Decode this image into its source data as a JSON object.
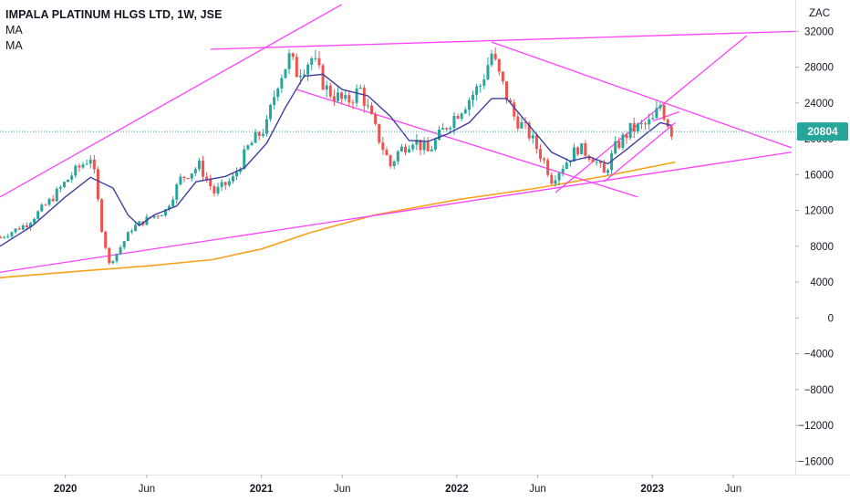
{
  "legend": {
    "symbol": "IMPALA PLATINUM HLGS LTD, 1W, JSE",
    "indicators": [
      "MA",
      "MA"
    ]
  },
  "colors": {
    "up": "#26a69a",
    "down": "#ef5350",
    "trendline": "#ff40ff",
    "ma_fast": "#3f3f9f",
    "ma_slow": "#f7a21b",
    "price_line": "#26a69a",
    "badge": "#26a69a"
  },
  "chart_data": {
    "type": "candlestick",
    "currency": "ZAC",
    "ylim": [
      -17500,
      35500
    ],
    "y_ticks": [
      32000,
      28000,
      24000,
      20000,
      16000,
      12000,
      8000,
      4000,
      0,
      -4000,
      -8000,
      -12000,
      -16000
    ],
    "y_tick_labels": [
      "32000",
      "28000",
      "24000",
      "20000",
      "16000",
      "12000",
      "8000",
      "4000",
      "0",
      "−4000",
      "−8000",
      "−12000",
      "−16000"
    ],
    "x_range": [
      "2019-09-01",
      "2023-09-25"
    ],
    "x_ticks": [
      {
        "date": "2020-01-01",
        "label": "2020",
        "bold": true
      },
      {
        "date": "2020-06-01",
        "label": "Jun",
        "bold": false
      },
      {
        "date": "2021-01-01",
        "label": "2021",
        "bold": true
      },
      {
        "date": "2021-06-01",
        "label": "Jun",
        "bold": false
      },
      {
        "date": "2022-01-01",
        "label": "2022",
        "bold": true
      },
      {
        "date": "2022-06-01",
        "label": "Jun",
        "bold": false
      },
      {
        "date": "2023-01-01",
        "label": "2023",
        "bold": true
      },
      {
        "date": "2023-06-01",
        "label": "Jun",
        "bold": false
      }
    ],
    "last_price": 20804,
    "last_price_label": "20804",
    "price_keypoints": [
      [
        "2019-09-02",
        9000
      ],
      [
        "2019-10-21",
        10500
      ],
      [
        "2019-12-02",
        13000
      ],
      [
        "2020-01-13",
        16000
      ],
      [
        "2020-02-17",
        18000
      ],
      [
        "2020-02-24",
        16000
      ],
      [
        "2020-03-09",
        10000
      ],
      [
        "2020-03-23",
        6000
      ],
      [
        "2020-04-06",
        7200
      ],
      [
        "2020-05-04",
        10000
      ],
      [
        "2020-06-01",
        11000
      ],
      [
        "2020-07-06",
        12000
      ],
      [
        "2020-08-03",
        15500
      ],
      [
        "2020-09-07",
        17000
      ],
      [
        "2020-10-05",
        14000
      ],
      [
        "2020-11-09",
        15500
      ],
      [
        "2020-12-07",
        19000
      ],
      [
        "2021-01-11",
        21500
      ],
      [
        "2021-02-01",
        26500
      ],
      [
        "2021-02-22",
        29000
      ],
      [
        "2021-03-08",
        27500
      ],
      [
        "2021-04-05",
        29000
      ],
      [
        "2021-05-03",
        25500
      ],
      [
        "2021-06-07",
        24000
      ],
      [
        "2021-07-05",
        25500
      ],
      [
        "2021-08-02",
        21000
      ],
      [
        "2021-08-30",
        17000
      ],
      [
        "2021-09-13",
        18500
      ],
      [
        "2021-10-11",
        20000
      ],
      [
        "2021-11-08",
        18500
      ],
      [
        "2021-12-13",
        21500
      ],
      [
        "2022-01-17",
        24000
      ],
      [
        "2022-02-14",
        26000
      ],
      [
        "2022-03-07",
        29500
      ],
      [
        "2022-03-21",
        27000
      ],
      [
        "2022-04-18",
        22500
      ],
      [
        "2022-05-16",
        20500
      ],
      [
        "2022-06-13",
        17500
      ],
      [
        "2022-06-27",
        15500
      ],
      [
        "2022-07-18",
        17000
      ],
      [
        "2022-08-15",
        19000
      ],
      [
        "2022-09-12",
        18000
      ],
      [
        "2022-10-03",
        16000
      ],
      [
        "2022-10-24",
        19000
      ],
      [
        "2022-11-21",
        21000
      ],
      [
        "2022-12-19",
        21500
      ],
      [
        "2023-01-02",
        22000
      ],
      [
        "2023-01-16",
        23800
      ],
      [
        "2023-02-06",
        20800
      ]
    ],
    "ma_fast_points": [
      [
        "2019-09-01",
        8000
      ],
      [
        "2019-11-01",
        10300
      ],
      [
        "2020-01-01",
        13500
      ],
      [
        "2020-02-17",
        15700
      ],
      [
        "2020-03-30",
        14500
      ],
      [
        "2020-04-27",
        11500
      ],
      [
        "2020-05-18",
        10300
      ],
      [
        "2020-06-15",
        11500
      ],
      [
        "2020-07-27",
        12500
      ],
      [
        "2020-09-01",
        15200
      ],
      [
        "2020-10-26",
        15800
      ],
      [
        "2020-12-01",
        16800
      ],
      [
        "2021-01-11",
        19500
      ],
      [
        "2021-02-15",
        23500
      ],
      [
        "2021-03-22",
        27000
      ],
      [
        "2021-04-26",
        27200
      ],
      [
        "2021-06-01",
        25500
      ],
      [
        "2021-07-19",
        24800
      ],
      [
        "2021-08-30",
        22500
      ],
      [
        "2021-10-04",
        19800
      ],
      [
        "2021-11-08",
        19700
      ],
      [
        "2021-12-13",
        20500
      ],
      [
        "2022-01-24",
        21800
      ],
      [
        "2022-03-07",
        24500
      ],
      [
        "2022-04-04",
        24500
      ],
      [
        "2022-05-16",
        21500
      ],
      [
        "2022-06-27",
        18500
      ],
      [
        "2022-08-01",
        17500
      ],
      [
        "2022-09-05",
        18000
      ],
      [
        "2022-10-10",
        17200
      ],
      [
        "2022-11-14",
        18800
      ],
      [
        "2022-12-19",
        20500
      ],
      [
        "2023-01-16",
        21800
      ],
      [
        "2023-02-06",
        21500
      ]
    ],
    "ma_slow_points": [
      [
        "2019-09-01",
        4500
      ],
      [
        "2020-01-01",
        5100
      ],
      [
        "2020-06-01",
        5800
      ],
      [
        "2020-10-01",
        6500
      ],
      [
        "2021-01-01",
        7700
      ],
      [
        "2021-04-01",
        9500
      ],
      [
        "2021-08-01",
        11500
      ],
      [
        "2022-01-01",
        13200
      ],
      [
        "2022-06-01",
        14500
      ],
      [
        "2022-10-01",
        15800
      ],
      [
        "2023-02-13",
        17400
      ]
    ],
    "trendlines": [
      {
        "from": [
          "2019-09-01",
          13500
        ],
        "to": [
          "2021-05-31",
          35000
        ]
      },
      {
        "from": [
          "2020-09-28",
          30000
        ],
        "to": [
          "2023-09-25",
          32000
        ]
      },
      {
        "from": [
          "2019-09-01",
          5100
        ],
        "to": [
          "2023-09-18",
          18500
        ]
      },
      {
        "from": [
          "2022-03-07",
          30800
        ],
        "to": [
          "2023-09-18",
          19000
        ]
      },
      {
        "from": [
          "2021-03-08",
          25500
        ],
        "to": [
          "2022-12-05",
          13500
        ]
      },
      {
        "from": [
          "2022-07-04",
          14000
        ],
        "to": [
          "2023-06-26",
          31500
        ]
      },
      {
        "from": [
          "2022-10-03",
          15200
        ],
        "to": [
          "2023-02-13",
          21800
        ]
      },
      {
        "from": [
          "2023-01-02",
          22000
        ],
        "to": [
          "2023-02-20",
          23000
        ]
      }
    ]
  }
}
